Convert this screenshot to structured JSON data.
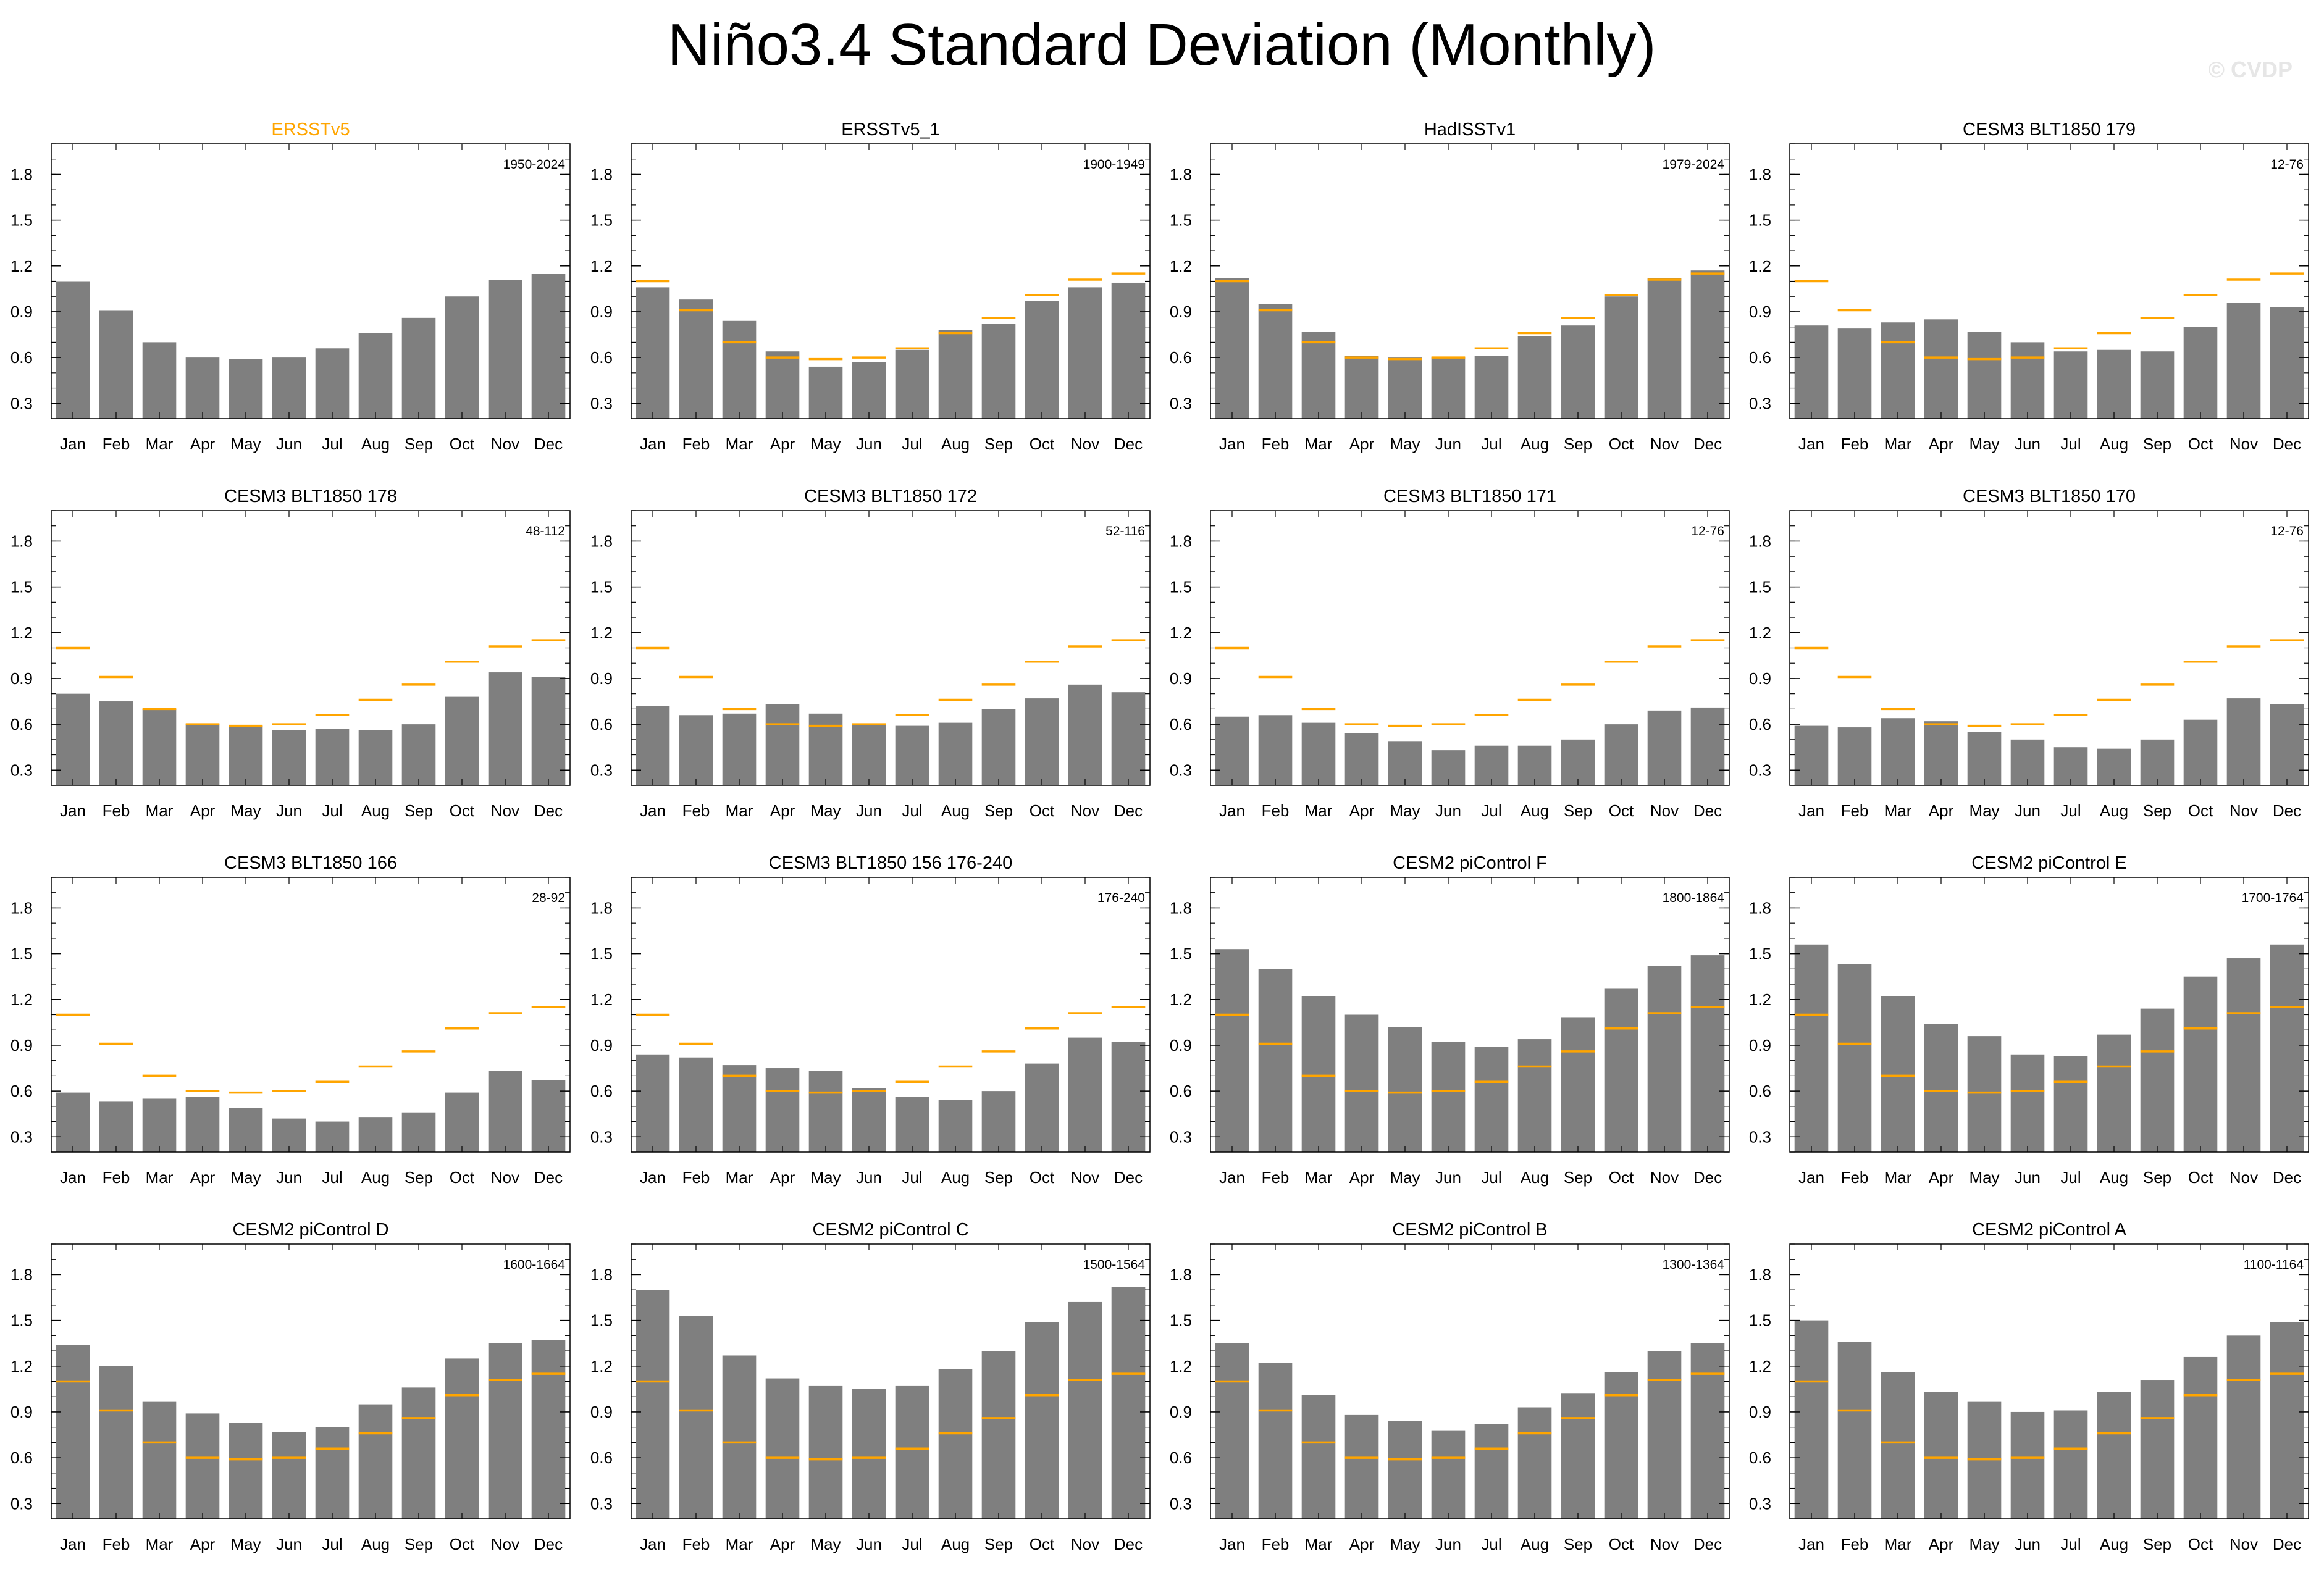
{
  "title": "Niño3.4 Standard Deviation (Monthly)",
  "watermark": "© CVDP",
  "colors": {
    "bar": "#7f7f7f",
    "reference_line": "#ffa500",
    "reference_title": "#ffa500",
    "text": "#000000"
  },
  "chart_data": {
    "type": "bar",
    "categories": [
      "Jan",
      "Feb",
      "Mar",
      "Apr",
      "May",
      "Jun",
      "Jul",
      "Aug",
      "Sep",
      "Oct",
      "Nov",
      "Dec"
    ],
    "yticks": [
      "0.3",
      "0.6",
      "0.9",
      "1.2",
      "1.5",
      "1.8"
    ],
    "ylim": [
      0.2,
      2.0
    ],
    "reference": [
      1.1,
      0.91,
      0.7,
      0.6,
      0.59,
      0.6,
      0.66,
      0.76,
      0.86,
      1.01,
      1.11,
      1.15
    ],
    "panels": [
      {
        "title": "ERSSTv5",
        "period": "1950-2024",
        "show_reference": false,
        "values": [
          1.1,
          0.91,
          0.7,
          0.6,
          0.59,
          0.6,
          0.66,
          0.76,
          0.86,
          1.0,
          1.11,
          1.15
        ]
      },
      {
        "title": "ERSSTv5_1",
        "period": "1900-1949",
        "show_reference": true,
        "values": [
          1.06,
          0.98,
          0.84,
          0.64,
          0.54,
          0.57,
          0.65,
          0.78,
          0.82,
          0.97,
          1.06,
          1.09
        ]
      },
      {
        "title": "HadISSTv1",
        "period": "1979-2024",
        "show_reference": true,
        "values": [
          1.12,
          0.95,
          0.77,
          0.61,
          0.6,
          0.6,
          0.61,
          0.74,
          0.81,
          1.0,
          1.12,
          1.17
        ]
      },
      {
        "title": "CESM3 BLT1850 179",
        "period": "12-76",
        "show_reference": true,
        "values": [
          0.81,
          0.79,
          0.83,
          0.85,
          0.77,
          0.7,
          0.64,
          0.65,
          0.64,
          0.8,
          0.96,
          0.93
        ]
      },
      {
        "title": "CESM3 BLT1850 178",
        "period": "48-112",
        "show_reference": true,
        "values": [
          0.8,
          0.75,
          0.7,
          0.6,
          0.59,
          0.56,
          0.57,
          0.56,
          0.6,
          0.78,
          0.94,
          0.91
        ]
      },
      {
        "title": "CESM3 BLT1850 172",
        "period": "52-116",
        "show_reference": true,
        "values": [
          0.72,
          0.66,
          0.67,
          0.73,
          0.67,
          0.6,
          0.59,
          0.61,
          0.7,
          0.77,
          0.86,
          0.81
        ]
      },
      {
        "title": "CESM3 BLT1850 171",
        "period": "12-76",
        "show_reference": true,
        "values": [
          0.65,
          0.66,
          0.61,
          0.54,
          0.49,
          0.43,
          0.46,
          0.46,
          0.5,
          0.6,
          0.69,
          0.71
        ]
      },
      {
        "title": "CESM3 BLT1850 170",
        "period": "12-76",
        "show_reference": true,
        "values": [
          0.59,
          0.58,
          0.64,
          0.62,
          0.55,
          0.5,
          0.45,
          0.44,
          0.5,
          0.63,
          0.77,
          0.73
        ]
      },
      {
        "title": "CESM3 BLT1850 166",
        "period": "28-92",
        "show_reference": true,
        "values": [
          0.59,
          0.53,
          0.55,
          0.56,
          0.49,
          0.42,
          0.4,
          0.43,
          0.46,
          0.59,
          0.73,
          0.67
        ]
      },
      {
        "title": "CESM3 BLT1850 156 176-240",
        "period": "176-240",
        "show_reference": true,
        "values": [
          0.84,
          0.82,
          0.77,
          0.75,
          0.73,
          0.62,
          0.56,
          0.54,
          0.6,
          0.78,
          0.95,
          0.92
        ]
      },
      {
        "title": "CESM2 piControl F",
        "period": "1800-1864",
        "show_reference": true,
        "values": [
          1.53,
          1.4,
          1.22,
          1.1,
          1.02,
          0.92,
          0.89,
          0.94,
          1.08,
          1.27,
          1.42,
          1.49
        ]
      },
      {
        "title": "CESM2 piControl E",
        "period": "1700-1764",
        "show_reference": true,
        "values": [
          1.56,
          1.43,
          1.22,
          1.04,
          0.96,
          0.84,
          0.83,
          0.97,
          1.14,
          1.35,
          1.47,
          1.56
        ]
      },
      {
        "title": "CESM2 piControl D",
        "period": "1600-1664",
        "show_reference": true,
        "values": [
          1.34,
          1.2,
          0.97,
          0.89,
          0.83,
          0.77,
          0.8,
          0.95,
          1.06,
          1.25,
          1.35,
          1.37
        ]
      },
      {
        "title": "CESM2 piControl C",
        "period": "1500-1564",
        "show_reference": true,
        "values": [
          1.7,
          1.53,
          1.27,
          1.12,
          1.07,
          1.05,
          1.07,
          1.18,
          1.3,
          1.49,
          1.62,
          1.72
        ]
      },
      {
        "title": "CESM2 piControl B",
        "period": "1300-1364",
        "show_reference": true,
        "values": [
          1.35,
          1.22,
          1.01,
          0.88,
          0.84,
          0.78,
          0.82,
          0.93,
          1.02,
          1.16,
          1.3,
          1.35
        ]
      },
      {
        "title": "CESM2 piControl A",
        "period": "1100-1164",
        "show_reference": true,
        "values": [
          1.5,
          1.36,
          1.16,
          1.03,
          0.97,
          0.9,
          0.91,
          1.03,
          1.11,
          1.26,
          1.4,
          1.49
        ]
      }
    ]
  }
}
